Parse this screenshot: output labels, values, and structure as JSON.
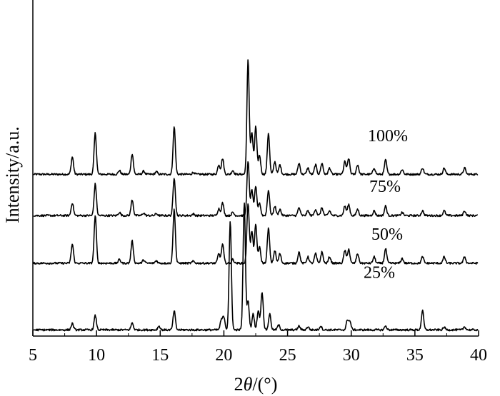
{
  "chart_data": {
    "type": "line",
    "title": "",
    "xlabel_prefix": "2",
    "xlabel_theta": "θ",
    "xlabel_suffix": "/(°)",
    "ylabel": "Intensity/a.u.",
    "xlim": [
      5,
      40
    ],
    "xticks": [
      "5",
      "10",
      "15",
      "20",
      "25",
      "30",
      "35",
      "40"
    ],
    "grid": false,
    "legend": "none",
    "line_color": "#000000",
    "series": [
      {
        "name": "100%",
        "baseline": 0.49,
        "peaks": [
          [
            8.1,
            0.055
          ],
          [
            9.9,
            0.13
          ],
          [
            11.8,
            0.012
          ],
          [
            12.8,
            0.065
          ],
          [
            13.7,
            0.01
          ],
          [
            14.7,
            0.008
          ],
          [
            16.1,
            0.15
          ],
          [
            17.6,
            0.006
          ],
          [
            19.6,
            0.03
          ],
          [
            19.9,
            0.05
          ],
          [
            20.7,
            0.012
          ],
          [
            21.9,
            0.36
          ],
          [
            22.2,
            0.13
          ],
          [
            22.5,
            0.15
          ],
          [
            22.8,
            0.06
          ],
          [
            23.5,
            0.13
          ],
          [
            24.0,
            0.04
          ],
          [
            24.4,
            0.03
          ],
          [
            25.9,
            0.035
          ],
          [
            26.6,
            0.02
          ],
          [
            27.2,
            0.03
          ],
          [
            27.7,
            0.035
          ],
          [
            28.3,
            0.02
          ],
          [
            29.5,
            0.04
          ],
          [
            29.8,
            0.05
          ],
          [
            30.5,
            0.03
          ],
          [
            31.8,
            0.02
          ],
          [
            32.7,
            0.045
          ],
          [
            34.0,
            0.015
          ],
          [
            35.6,
            0.02
          ],
          [
            37.3,
            0.02
          ],
          [
            38.9,
            0.02
          ]
        ]
      },
      {
        "name": "75%",
        "baseline": 0.36,
        "peaks": [
          [
            8.1,
            0.04
          ],
          [
            9.9,
            0.1
          ],
          [
            11.8,
            0.01
          ],
          [
            12.8,
            0.05
          ],
          [
            13.7,
            0.008
          ],
          [
            14.7,
            0.006
          ],
          [
            16.1,
            0.12
          ],
          [
            17.6,
            0.005
          ],
          [
            19.6,
            0.022
          ],
          [
            19.9,
            0.04
          ],
          [
            20.7,
            0.01
          ],
          [
            21.9,
            0.17
          ],
          [
            22.2,
            0.08
          ],
          [
            22.5,
            0.09
          ],
          [
            22.8,
            0.04
          ],
          [
            23.5,
            0.08
          ],
          [
            24.0,
            0.03
          ],
          [
            24.4,
            0.02
          ],
          [
            25.9,
            0.025
          ],
          [
            26.6,
            0.015
          ],
          [
            27.2,
            0.02
          ],
          [
            27.7,
            0.025
          ],
          [
            28.3,
            0.015
          ],
          [
            29.5,
            0.03
          ],
          [
            29.8,
            0.035
          ],
          [
            30.5,
            0.02
          ],
          [
            31.8,
            0.015
          ],
          [
            32.7,
            0.03
          ],
          [
            34.0,
            0.01
          ],
          [
            35.6,
            0.015
          ],
          [
            37.3,
            0.015
          ],
          [
            38.9,
            0.015
          ]
        ]
      },
      {
        "name": "50%",
        "baseline": 0.21,
        "peaks": [
          [
            8.1,
            0.06
          ],
          [
            9.9,
            0.15
          ],
          [
            11.8,
            0.012
          ],
          [
            12.8,
            0.07
          ],
          [
            13.7,
            0.01
          ],
          [
            14.7,
            0.008
          ],
          [
            16.1,
            0.17
          ],
          [
            17.6,
            0.006
          ],
          [
            19.6,
            0.03
          ],
          [
            19.9,
            0.06
          ],
          [
            20.7,
            0.012
          ],
          [
            21.9,
            0.19
          ],
          [
            22.2,
            0.1
          ],
          [
            22.5,
            0.12
          ],
          [
            22.8,
            0.05
          ],
          [
            23.5,
            0.11
          ],
          [
            24.0,
            0.04
          ],
          [
            24.4,
            0.03
          ],
          [
            25.9,
            0.035
          ],
          [
            26.6,
            0.02
          ],
          [
            27.2,
            0.03
          ],
          [
            27.7,
            0.035
          ],
          [
            28.3,
            0.02
          ],
          [
            29.5,
            0.04
          ],
          [
            29.8,
            0.045
          ],
          [
            30.5,
            0.03
          ],
          [
            31.8,
            0.02
          ],
          [
            32.7,
            0.045
          ],
          [
            34.0,
            0.015
          ],
          [
            35.6,
            0.02
          ],
          [
            37.3,
            0.02
          ],
          [
            38.9,
            0.02
          ]
        ]
      },
      {
        "name": "25%",
        "baseline": 0.0,
        "peaks": [
          [
            8.1,
            0.02
          ],
          [
            9.9,
            0.045
          ],
          [
            12.8,
            0.022
          ],
          [
            14.9,
            0.012
          ],
          [
            16.1,
            0.06
          ],
          [
            19.8,
            0.03
          ],
          [
            20.0,
            0.04
          ],
          [
            20.5,
            0.34
          ],
          [
            21.6,
            0.4
          ],
          [
            21.9,
            0.09
          ],
          [
            22.3,
            0.05
          ],
          [
            22.7,
            0.06
          ],
          [
            23.0,
            0.12
          ],
          [
            23.6,
            0.05
          ],
          [
            24.3,
            0.015
          ],
          [
            25.9,
            0.012
          ],
          [
            26.6,
            0.01
          ],
          [
            27.6,
            0.012
          ],
          [
            29.7,
            0.03
          ],
          [
            29.9,
            0.025
          ],
          [
            32.7,
            0.012
          ],
          [
            35.6,
            0.06
          ],
          [
            37.3,
            0.008
          ],
          [
            38.9,
            0.01
          ]
        ]
      }
    ]
  }
}
